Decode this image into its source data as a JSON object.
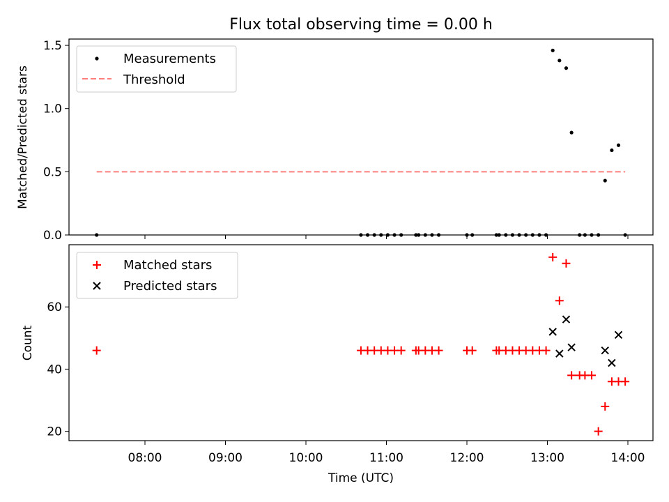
{
  "chart_data": {
    "title": "Flux total observing time = 0.00 h",
    "xlabel": "Time (UTC)",
    "x_ticks": [
      "08:00",
      "09:00",
      "10:00",
      "11:00",
      "12:00",
      "13:00",
      "14:00"
    ],
    "panels": [
      {
        "type": "scatter",
        "ylabel": "Matched/Predicted stars",
        "ylim": [
          0,
          1.55
        ],
        "yticks": [
          "0.0",
          "0.5",
          "1.0",
          "1.5"
        ],
        "legend_position": "upper-left",
        "series": [
          {
            "name": "Measurements",
            "marker": "dot",
            "color": "#000000",
            "x": [
              "07:24",
              "10:41",
              "10:46",
              "10:51",
              "10:56",
              "11:01",
              "11:06",
              "11:11",
              "11:22",
              "11:24",
              "11:29",
              "11:34",
              "11:39",
              "12:00",
              "12:04",
              "12:22",
              "12:24",
              "12:29",
              "12:34",
              "12:39",
              "12:44",
              "12:49",
              "12:54",
              "12:59",
              "13:04",
              "13:09",
              "13:14",
              "13:18",
              "13:24",
              "13:28",
              "13:33",
              "13:38",
              "13:43",
              "13:48",
              "13:53",
              "13:58"
            ],
            "y": [
              0,
              0,
              0,
              0,
              0,
              0,
              0,
              0,
              0,
              0,
              0,
              0,
              0,
              0,
              0,
              0,
              0,
              0,
              0,
              0,
              0,
              0,
              0,
              0,
              1.46,
              1.38,
              1.32,
              0.81,
              0,
              0,
              0,
              0,
              0.43,
              0.67,
              0.71,
              0
            ]
          },
          {
            "name": "Threshold",
            "style": "dashed-line",
            "color": "#ff7f7f",
            "x": [
              "07:24",
              "13:58"
            ],
            "y": [
              0.5,
              0.5
            ]
          }
        ]
      },
      {
        "type": "scatter",
        "ylabel": "Count",
        "ylim": [
          17,
          80
        ],
        "yticks": [
          "20",
          "40",
          "60"
        ],
        "legend_position": "upper-left",
        "series": [
          {
            "name": "Matched stars",
            "marker": "plus",
            "color": "#ff0000",
            "x": [
              "07:24",
              "10:41",
              "10:46",
              "10:51",
              "10:56",
              "11:01",
              "11:06",
              "11:11",
              "11:22",
              "11:24",
              "11:29",
              "11:34",
              "11:39",
              "12:00",
              "12:04",
              "12:22",
              "12:24",
              "12:29",
              "12:34",
              "12:39",
              "12:44",
              "12:49",
              "12:54",
              "12:59",
              "13:04",
              "13:09",
              "13:14",
              "13:18",
              "13:24",
              "13:28",
              "13:33",
              "13:38",
              "13:43",
              "13:48",
              "13:53",
              "13:58"
            ],
            "y": [
              46,
              46,
              46,
              46,
              46,
              46,
              46,
              46,
              46,
              46,
              46,
              46,
              46,
              46,
              46,
              46,
              46,
              46,
              46,
              46,
              46,
              46,
              46,
              46,
              76,
              62,
              74,
              38,
              38,
              38,
              38,
              20,
              28,
              36,
              36,
              36
            ]
          },
          {
            "name": "Predicted stars",
            "marker": "x",
            "color": "#000000",
            "x": [
              "13:04",
              "13:09",
              "13:14",
              "13:18",
              "13:43",
              "13:48",
              "13:53"
            ],
            "y": [
              52,
              45,
              56,
              47,
              46,
              42,
              51
            ]
          }
        ]
      }
    ]
  }
}
